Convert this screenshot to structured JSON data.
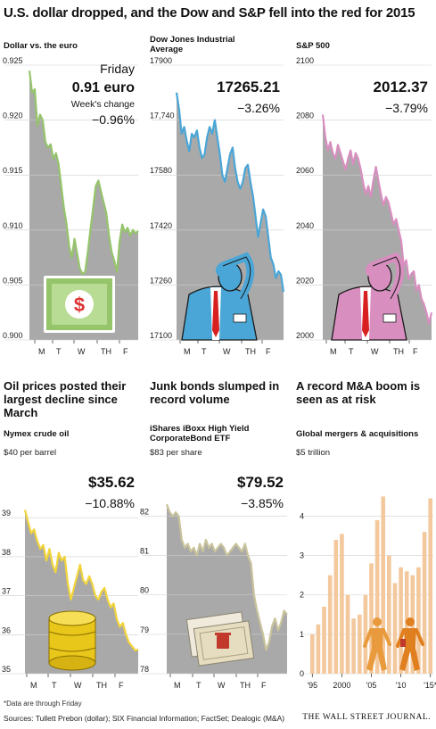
{
  "title": "U.S. dollar dropped, and the Dow and S&P fell into the red for 2015",
  "footnote": "*Data are through Friday",
  "sources": "Sources: Tullett Prebon (dollar); SIX Financial Information; FactSet; Dealogic (M&A)",
  "brand": "THE WALL STREET JOURNAL.",
  "colors": {
    "green": "#95c46b",
    "blue": "#4aa6d6",
    "pink": "#d88fc0",
    "yellow": "#f2d43a",
    "khaki": "#c9c39b",
    "peach": "#f3c89c",
    "gray": "#8f8f8f"
  },
  "sections": {
    "oil": "Oil prices posted their largest decline since March",
    "junk": "Junk bonds slumped in record volume",
    "ma": "A record M&A boom is seen as at risk"
  },
  "chart_data": [
    {
      "id": "dollar",
      "type": "area",
      "title": "Dollar vs. the euro",
      "yticks": [
        "0.925",
        "0.920",
        "0.915",
        "0.910",
        "0.905",
        "0.900"
      ],
      "ylim": [
        0.9,
        0.925
      ],
      "days": [
        "M",
        "T",
        "W",
        "TH",
        "F"
      ],
      "callout": {
        "line1": "Friday",
        "value": "0.91 euro",
        "line3": "Week's change",
        "change": "−0.96%"
      },
      "values": [
        0.9245,
        0.9225,
        0.9228,
        0.9195,
        0.9205,
        0.92,
        0.918,
        0.9175,
        0.9178,
        0.9165,
        0.917,
        0.916,
        0.914,
        0.912,
        0.9105,
        0.9085,
        0.9075,
        0.9092,
        0.9078,
        0.9065,
        0.906,
        0.9062,
        0.908,
        0.91,
        0.912,
        0.914,
        0.9145,
        0.9135,
        0.9125,
        0.9115,
        0.9095,
        0.908,
        0.9072,
        0.9062,
        0.909,
        0.9105,
        0.9098,
        0.9102,
        0.9095,
        0.91,
        0.9097,
        0.9099
      ]
    },
    {
      "id": "dow",
      "type": "area",
      "title": "Dow Jones Industrial Average",
      "yticks": [
        "17900",
        "17,740",
        "17580",
        "17420",
        "17260",
        "17100"
      ],
      "ylim": [
        17100,
        17900
      ],
      "days": [
        "M",
        "T",
        "W",
        "TH",
        "F"
      ],
      "callout": {
        "value": "17265.21",
        "change": "−3.26%"
      },
      "values": [
        17820,
        17770,
        17700,
        17720,
        17680,
        17650,
        17700,
        17690,
        17710,
        17660,
        17630,
        17640,
        17690,
        17720,
        17700,
        17740,
        17690,
        17640,
        17580,
        17560,
        17600,
        17640,
        17660,
        17600,
        17560,
        17540,
        17560,
        17600,
        17610,
        17560,
        17520,
        17460,
        17400,
        17440,
        17480,
        17460,
        17400,
        17340,
        17320,
        17280,
        17300,
        17290,
        17240
      ]
    },
    {
      "id": "sp",
      "type": "area",
      "title": "S&P 500",
      "yticks": [
        "2100",
        "2080",
        "2060",
        "2040",
        "2020",
        "2000"
      ],
      "ylim": [
        2000,
        2100
      ],
      "days": [
        "M",
        "T",
        "W",
        "TH",
        "F"
      ],
      "callout": {
        "value": "2012.37",
        "change": "−3.79%"
      },
      "values": [
        2082,
        2074,
        2069,
        2072,
        2068,
        2066,
        2071,
        2068,
        2065,
        2062,
        2066,
        2069,
        2064,
        2068,
        2066,
        2062,
        2057,
        2053,
        2056,
        2052,
        2058,
        2063,
        2058,
        2053,
        2049,
        2052,
        2050,
        2046,
        2042,
        2044,
        2040,
        2036,
        2027,
        2029,
        2022,
        2024,
        2025,
        2018,
        2020,
        2015,
        2013,
        2010,
        2006,
        2010
      ]
    },
    {
      "id": "oil",
      "type": "area",
      "title": "Nymex crude oil",
      "unit": "$40 per barrel",
      "yticks": [
        "39",
        "38",
        "37",
        "36",
        "35"
      ],
      "ylim": [
        35,
        39.6
      ],
      "days": [
        "M",
        "T",
        "W",
        "TH",
        "F"
      ],
      "callout": {
        "value": "$35.62",
        "change": "−10.88%"
      },
      "values": [
        39.2,
        38.9,
        38.6,
        38.7,
        38.4,
        38.2,
        38.3,
        37.9,
        38.2,
        37.8,
        37.6,
        38.1,
        37.9,
        38.0,
        37.3,
        36.9,
        37.2,
        37.5,
        37.8,
        37.4,
        37.3,
        37.5,
        37.3,
        37.0,
        36.9,
        37.1,
        37.2,
        36.9,
        36.7,
        36.8,
        36.4,
        36.2,
        36.3,
        36.0,
        35.8,
        35.7,
        35.6,
        35.62
      ]
    },
    {
      "id": "junk",
      "type": "area",
      "title": "iShares iBoxx High Yield CorporateBond ETF",
      "unit": "$83 per share",
      "yticks": [
        "82",
        "81",
        "80",
        "79",
        "78"
      ],
      "ylim": [
        78,
        82.6
      ],
      "days": [
        "M",
        "T",
        "W",
        "TH",
        "F"
      ],
      "callout": {
        "value": "$79.52",
        "change": "−3.85%"
      },
      "values": [
        82.3,
        82.1,
        82.0,
        82.1,
        82.0,
        81.4,
        81.2,
        81.3,
        81.1,
        81.2,
        81.0,
        81.3,
        81.1,
        81.4,
        81.2,
        81.3,
        81.1,
        81.2,
        81.3,
        81.2,
        81.0,
        81.1,
        81.2,
        81.3,
        81.2,
        81.1,
        81.3,
        81.0,
        80.8,
        80.0,
        79.6,
        79.3,
        79.0,
        78.6,
        78.8,
        79.2,
        79.4,
        79.1,
        79.3,
        79.6,
        79.5
      ]
    },
    {
      "id": "ma",
      "type": "bar",
      "title": "Global mergers & acquisitions",
      "unit": "$5 trillion",
      "yticks": [
        "4",
        "3",
        "2",
        "1",
        "0"
      ],
      "ylim": [
        0,
        4.6
      ],
      "xticks": [
        "'95",
        "2000",
        "'05",
        "'10",
        "'15*"
      ],
      "categories": [
        "1995",
        "1996",
        "1997",
        "1998",
        "1999",
        "2000",
        "2001",
        "2002",
        "2003",
        "2004",
        "2005",
        "2006",
        "2007",
        "2008",
        "2009",
        "2010",
        "2011",
        "2012",
        "2013",
        "2014",
        "2015"
      ],
      "values": [
        1.0,
        1.25,
        1.7,
        2.5,
        3.4,
        3.55,
        2.0,
        1.4,
        1.5,
        2.0,
        2.8,
        3.9,
        4.5,
        3.0,
        2.3,
        2.7,
        2.6,
        2.5,
        2.7,
        3.6,
        4.45
      ]
    }
  ]
}
